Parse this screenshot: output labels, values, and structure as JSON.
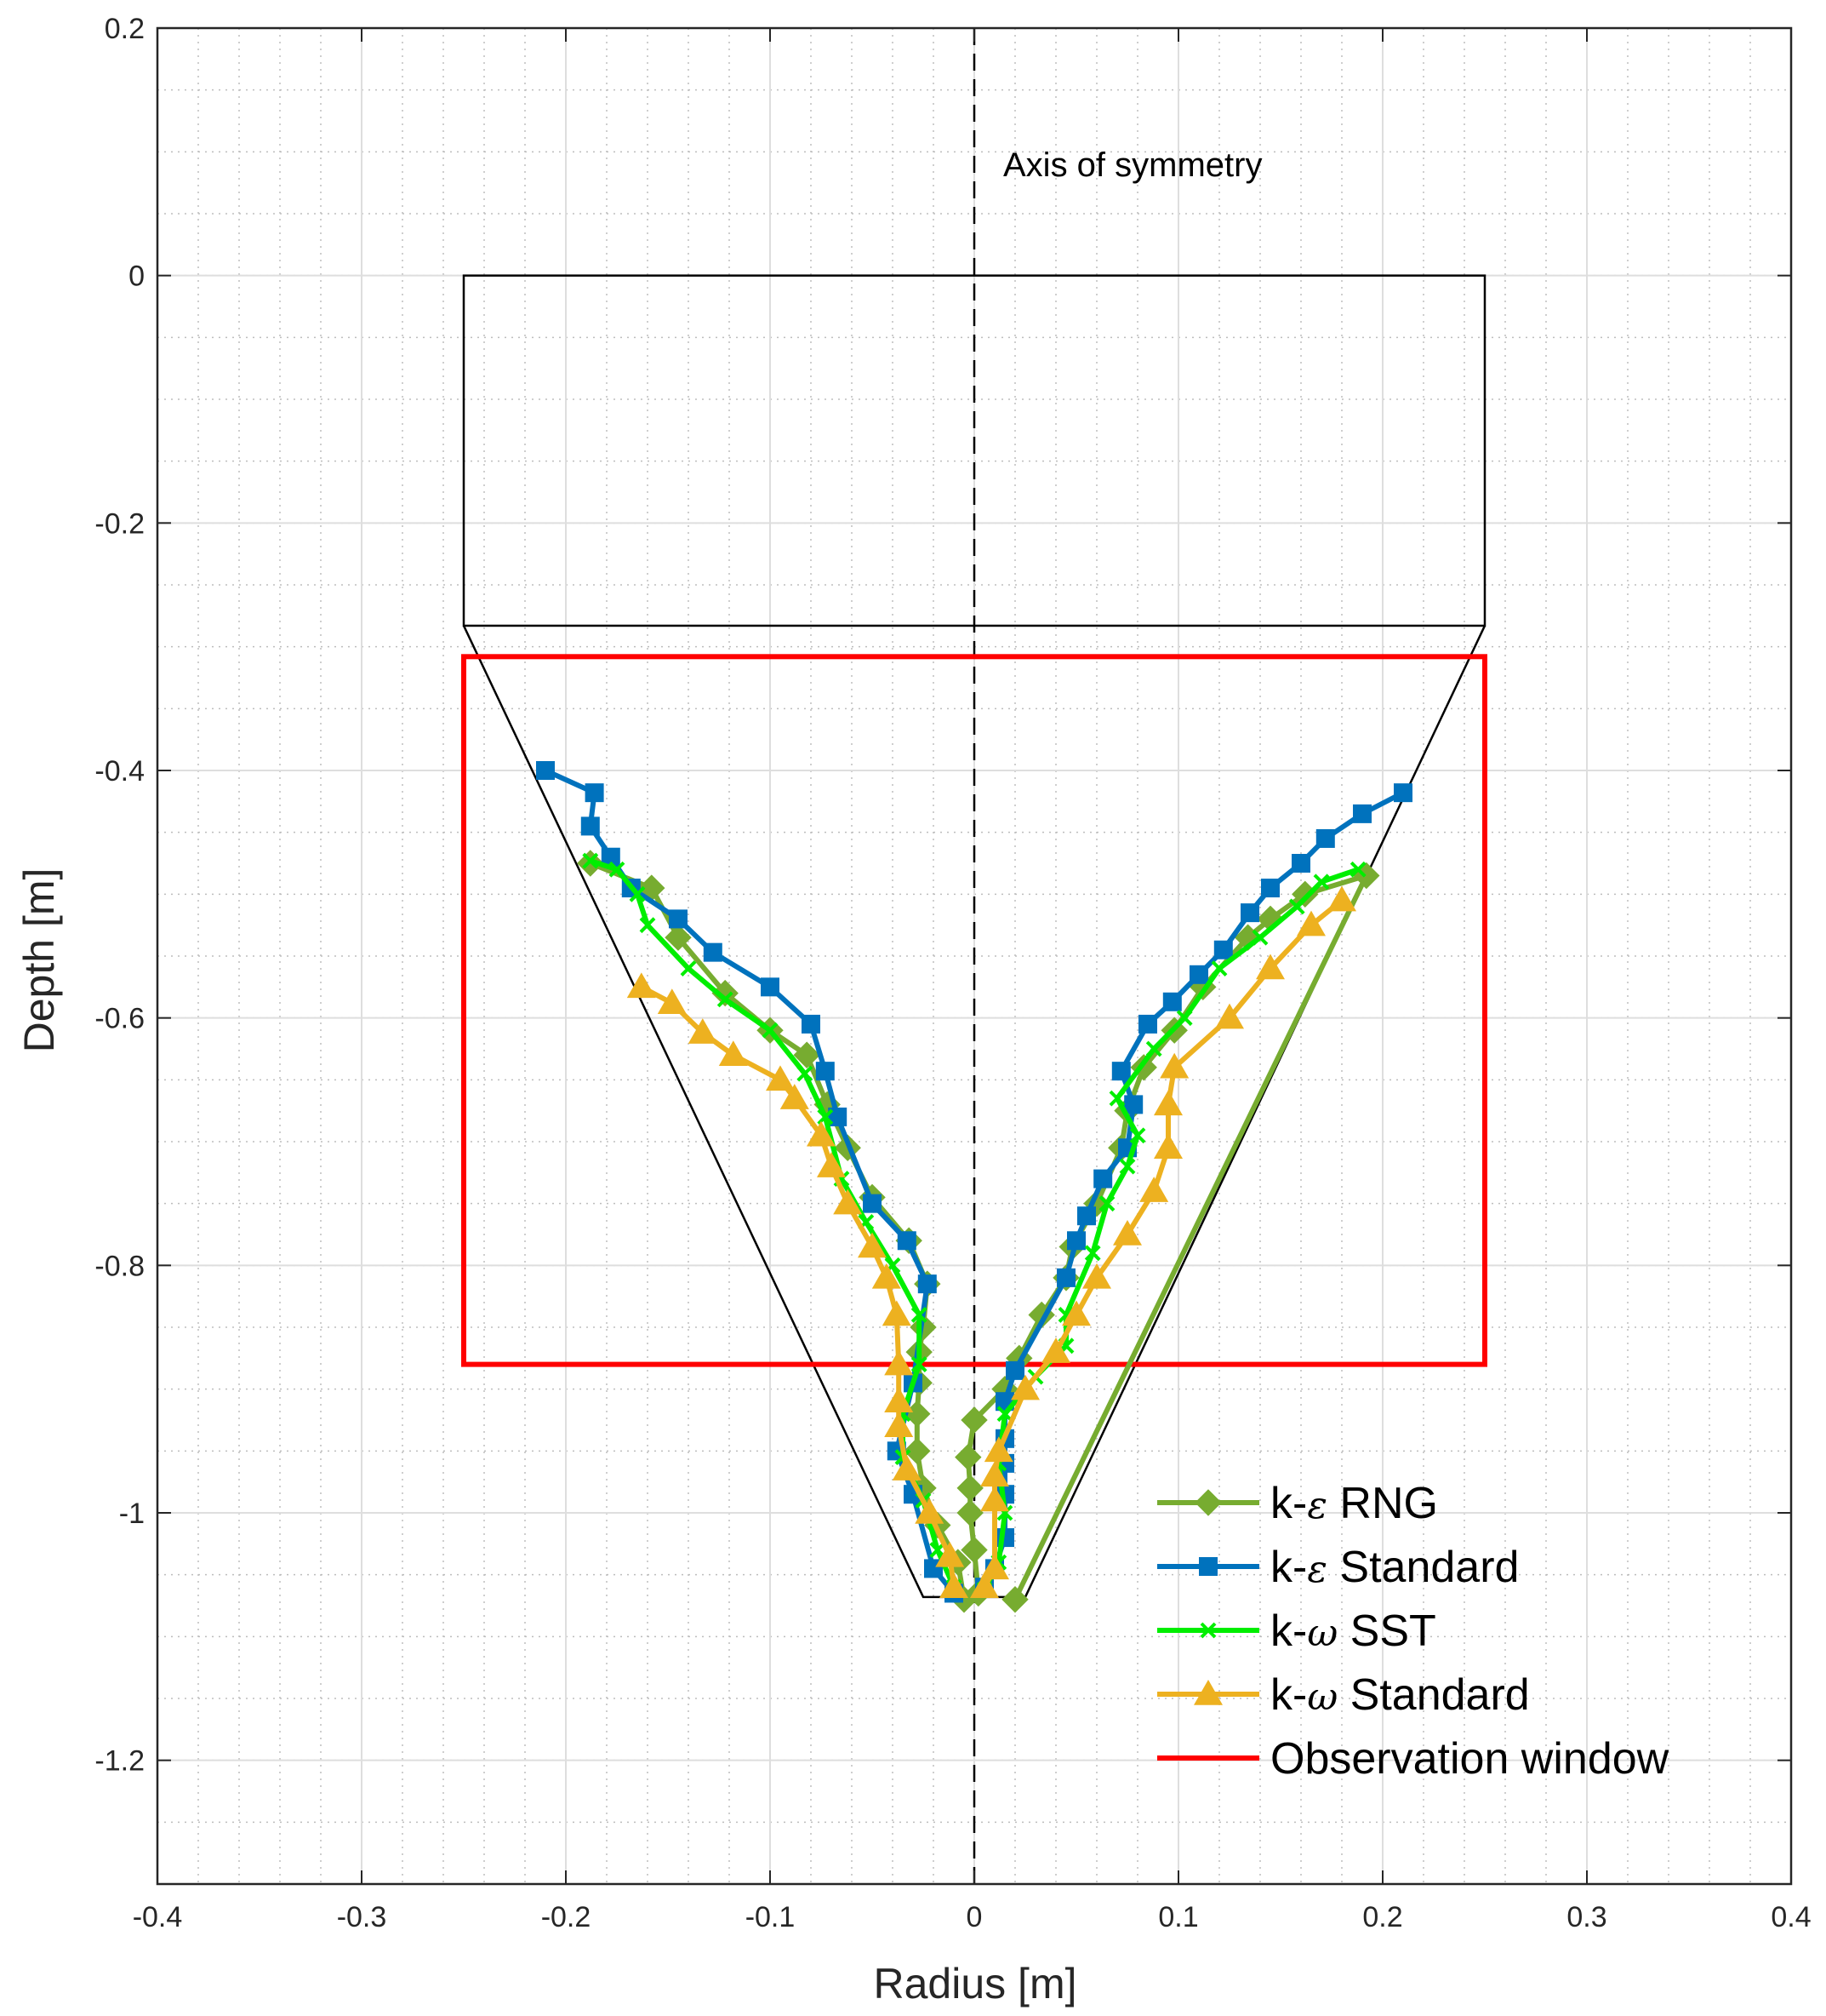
{
  "chart_data": {
    "type": "line",
    "title": "",
    "xlabel": "Radius [m]",
    "ylabel": "Depth [m]",
    "xlim": [
      -0.4,
      0.4
    ],
    "ylim": [
      -1.3,
      0.2
    ],
    "grid": true,
    "minor_grid": true,
    "legend_position": "bottom-right",
    "x_ticks": [
      -0.4,
      -0.3,
      -0.2,
      -0.1,
      0,
      0.1,
      0.2,
      0.3,
      0.4
    ],
    "x_tick_labels": [
      "-0.4",
      "-0.3",
      "-0.2",
      "-0.1",
      "0",
      "0.1",
      "0.2",
      "0.3",
      "0.4"
    ],
    "y_ticks": [
      -1.2,
      -1,
      -0.8,
      -0.6,
      -0.4,
      -0.2,
      0,
      0.2
    ],
    "y_tick_labels": [
      "-1.2",
      "-1",
      "-0.8",
      "-0.6",
      "-0.4",
      "-0.2",
      "0",
      "0.2"
    ],
    "annotations": [
      {
        "text": "Axis of symmetry",
        "x": 0.01,
        "y": 0.09
      }
    ],
    "axis_of_symmetry_x": 0,
    "geometry_outline": {
      "rectangle": {
        "x": [
          -0.25,
          0.25
        ],
        "y": [
          -0.283,
          0
        ]
      },
      "cone": [
        [
          -0.25,
          -0.283
        ],
        [
          -0.025,
          -1.068
        ],
        [
          0.025,
          -1.068
        ],
        [
          0.25,
          -0.283
        ]
      ]
    },
    "series": [
      {
        "name": "k-ε RNG",
        "label_prefix": "k-",
        "label_symbol": "ε",
        "label_suffix": " RNG",
        "color": "#77ac30",
        "marker": "diamond",
        "left": [
          [
            -0.188,
            -0.475
          ],
          [
            -0.158,
            -0.495
          ],
          [
            -0.145,
            -0.535
          ],
          [
            -0.122,
            -0.58
          ],
          [
            -0.1,
            -0.61
          ],
          [
            -0.082,
            -0.63
          ],
          [
            -0.072,
            -0.67
          ],
          [
            -0.062,
            -0.705
          ],
          [
            -0.05,
            -0.745
          ],
          [
            -0.032,
            -0.78
          ],
          [
            -0.023,
            -0.815
          ],
          [
            -0.025,
            -0.85
          ],
          [
            -0.027,
            -0.87
          ],
          [
            -0.027,
            -0.895
          ],
          [
            -0.028,
            -0.92
          ],
          [
            -0.028,
            -0.95
          ],
          [
            -0.025,
            -0.98
          ],
          [
            -0.018,
            -1.01
          ],
          [
            -0.008,
            -1.04
          ],
          [
            -0.005,
            -1.07
          ]
        ],
        "right": [
          [
            0.002,
            -1.065
          ],
          [
            0.0,
            -1.03
          ],
          [
            -0.002,
            -1.0
          ],
          [
            -0.002,
            -0.98
          ],
          [
            -0.003,
            -0.955
          ],
          [
            0.0,
            -0.925
          ],
          [
            0.015,
            -0.9
          ],
          [
            0.022,
            -0.875
          ],
          [
            0.033,
            -0.84
          ],
          [
            0.045,
            -0.81
          ],
          [
            0.048,
            -0.785
          ],
          [
            0.06,
            -0.75
          ],
          [
            0.072,
            -0.705
          ],
          [
            0.075,
            -0.675
          ],
          [
            0.083,
            -0.64
          ],
          [
            0.098,
            -0.61
          ],
          [
            0.112,
            -0.575
          ],
          [
            0.134,
            -0.535
          ],
          [
            0.145,
            -0.52
          ],
          [
            0.162,
            -0.5
          ],
          [
            0.192,
            -0.485
          ],
          [
            0.02,
            -1.07
          ]
        ]
      },
      {
        "name": "k-ε Standard",
        "label_prefix": "k-",
        "label_symbol": "ε",
        "label_suffix": " Standard",
        "color": "#0072bd",
        "marker": "square",
        "left": [
          [
            -0.21,
            -0.4
          ],
          [
            -0.186,
            -0.418
          ],
          [
            -0.188,
            -0.445
          ],
          [
            -0.178,
            -0.47
          ],
          [
            -0.168,
            -0.495
          ],
          [
            -0.145,
            -0.52
          ],
          [
            -0.128,
            -0.547
          ],
          [
            -0.1,
            -0.575
          ],
          [
            -0.08,
            -0.605
          ],
          [
            -0.073,
            -0.643
          ],
          [
            -0.067,
            -0.68
          ],
          [
            -0.05,
            -0.75
          ],
          [
            -0.033,
            -0.78
          ],
          [
            -0.023,
            -0.815
          ],
          [
            -0.03,
            -0.895
          ],
          [
            -0.038,
            -0.95
          ],
          [
            -0.03,
            -0.985
          ],
          [
            -0.02,
            -1.045
          ],
          [
            -0.01,
            -1.065
          ]
        ],
        "right": [
          [
            0.005,
            -1.06
          ],
          [
            0.01,
            -1.045
          ],
          [
            0.015,
            -1.02
          ],
          [
            0.015,
            -0.985
          ],
          [
            0.015,
            -0.96
          ],
          [
            0.015,
            -0.94
          ],
          [
            0.015,
            -0.91
          ],
          [
            0.02,
            -0.885
          ],
          [
            0.045,
            -0.81
          ],
          [
            0.05,
            -0.78
          ],
          [
            0.055,
            -0.76
          ],
          [
            0.063,
            -0.73
          ],
          [
            0.075,
            -0.705
          ],
          [
            0.078,
            -0.67
          ],
          [
            0.072,
            -0.643
          ],
          [
            0.085,
            -0.605
          ],
          [
            0.097,
            -0.587
          ],
          [
            0.11,
            -0.565
          ],
          [
            0.122,
            -0.545
          ],
          [
            0.135,
            -0.515
          ],
          [
            0.145,
            -0.495
          ],
          [
            0.16,
            -0.475
          ],
          [
            0.172,
            -0.455
          ],
          [
            0.19,
            -0.435
          ],
          [
            0.21,
            -0.418
          ]
        ]
      },
      {
        "name": "k-ω SST",
        "label_prefix": "k-",
        "label_symbol": "ω",
        "label_suffix": " SST",
        "color": "#00ee00",
        "marker": "x",
        "left": [
          [
            -0.188,
            -0.473
          ],
          [
            -0.175,
            -0.48
          ],
          [
            -0.165,
            -0.5
          ],
          [
            -0.16,
            -0.525
          ],
          [
            -0.14,
            -0.56
          ],
          [
            -0.122,
            -0.585
          ],
          [
            -0.1,
            -0.61
          ],
          [
            -0.083,
            -0.645
          ],
          [
            -0.073,
            -0.68
          ],
          [
            -0.065,
            -0.73
          ],
          [
            -0.053,
            -0.765
          ],
          [
            -0.04,
            -0.8
          ],
          [
            -0.027,
            -0.84
          ],
          [
            -0.027,
            -0.88
          ],
          [
            -0.035,
            -0.92
          ],
          [
            -0.035,
            -0.955
          ],
          [
            -0.025,
            -0.99
          ],
          [
            -0.018,
            -1.03
          ],
          [
            -0.01,
            -1.06
          ]
        ],
        "right": [
          [
            0.005,
            -1.062
          ],
          [
            0.012,
            -1.04
          ],
          [
            0.015,
            -1.0
          ],
          [
            0.012,
            -0.96
          ],
          [
            0.015,
            -0.92
          ],
          [
            0.03,
            -0.89
          ],
          [
            0.045,
            -0.865
          ],
          [
            0.045,
            -0.84
          ],
          [
            0.058,
            -0.79
          ],
          [
            0.065,
            -0.75
          ],
          [
            0.075,
            -0.72
          ],
          [
            0.08,
            -0.695
          ],
          [
            0.07,
            -0.665
          ],
          [
            0.088,
            -0.625
          ],
          [
            0.103,
            -0.6
          ],
          [
            0.12,
            -0.56
          ],
          [
            0.14,
            -0.535
          ],
          [
            0.158,
            -0.51
          ],
          [
            0.17,
            -0.49
          ],
          [
            0.188,
            -0.48
          ]
        ]
      },
      {
        "name": "k-ω Standard",
        "label_prefix": "k-",
        "label_symbol": "ω",
        "label_suffix": " Standard",
        "color": "#edb120",
        "marker": "triangle",
        "left": [
          [
            -0.163,
            -0.575
          ],
          [
            -0.148,
            -0.588
          ],
          [
            -0.133,
            -0.612
          ],
          [
            -0.118,
            -0.63
          ],
          [
            -0.095,
            -0.65
          ],
          [
            -0.088,
            -0.665
          ],
          [
            -0.075,
            -0.695
          ],
          [
            -0.07,
            -0.72
          ],
          [
            -0.062,
            -0.75
          ],
          [
            -0.05,
            -0.785
          ],
          [
            -0.043,
            -0.81
          ],
          [
            -0.038,
            -0.84
          ],
          [
            -0.037,
            -0.88
          ],
          [
            -0.037,
            -0.91
          ],
          [
            -0.037,
            -0.93
          ],
          [
            -0.033,
            -0.965
          ],
          [
            -0.022,
            -1.0
          ],
          [
            -0.012,
            -1.035
          ],
          [
            -0.01,
            -1.06
          ]
        ],
        "right": [
          [
            0.005,
            -1.06
          ],
          [
            0.01,
            -1.045
          ],
          [
            0.01,
            -0.99
          ],
          [
            0.01,
            -0.97
          ],
          [
            0.012,
            -0.95
          ],
          [
            0.025,
            -0.9
          ],
          [
            0.04,
            -0.87
          ],
          [
            0.05,
            -0.84
          ],
          [
            0.06,
            -0.81
          ],
          [
            0.075,
            -0.775
          ],
          [
            0.088,
            -0.74
          ],
          [
            0.095,
            -0.705
          ],
          [
            0.095,
            -0.67
          ],
          [
            0.098,
            -0.64
          ],
          [
            0.125,
            -0.6
          ],
          [
            0.145,
            -0.56
          ],
          [
            0.165,
            -0.525
          ],
          [
            0.18,
            -0.505
          ]
        ]
      }
    ],
    "observation_window": {
      "name": "Observation window",
      "color": "#ff0000",
      "x": [
        -0.25,
        0.25
      ],
      "y": [
        -0.88,
        -0.308
      ]
    }
  }
}
